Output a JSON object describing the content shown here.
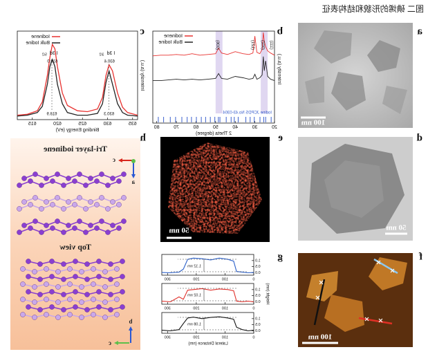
{
  "title": "图二 碘烯的形貌和结构表征",
  "panels": {
    "a": {
      "label": "a",
      "scale_bar": "100 nm"
    },
    "b": {
      "label": "b",
      "type": "line",
      "xlabel": "2 Theta (degree)",
      "ylabel": "Intensity (a.u.)",
      "xlim": [
        20,
        82
      ],
      "xticks": [
        20,
        30,
        40,
        50,
        60,
        70,
        80
      ],
      "ylim": [
        -3,
        10
      ],
      "series": [
        {
          "name": "Iodinene",
          "color": "#e8312f",
          "x": [
            20,
            22,
            23.5,
            24.5,
            25.2,
            25.7,
            26.3,
            27.5,
            29,
            30,
            31,
            33,
            36,
            40,
            44,
            47,
            48.5,
            50,
            54,
            58,
            62,
            66,
            70,
            74,
            78,
            82
          ],
          "values": [
            6.6,
            6.9,
            7.2,
            7.8,
            8.6,
            9.8,
            7.4,
            6.8,
            7.0,
            9.3,
            6.9,
            6.7,
            6.8,
            7.1,
            6.7,
            6.9,
            7.6,
            6.8,
            6.7,
            6.6,
            6.8,
            6.6,
            6.7,
            6.6,
            6.6,
            6.5
          ]
        },
        {
          "name": "Bulk Iodine",
          "color": "#222222",
          "x": [
            20,
            22,
            23.5,
            24.5,
            25.2,
            25.7,
            26.3,
            27.5,
            29,
            30,
            31,
            33,
            36,
            40,
            44,
            47,
            48.5,
            50,
            54,
            58,
            62,
            66,
            70,
            74,
            78,
            82
          ],
          "values": [
            3.0,
            3.2,
            3.6,
            5.8,
            4.4,
            6.4,
            3.8,
            3.4,
            3.2,
            3.9,
            3.3,
            3.2,
            3.4,
            3.6,
            3.2,
            3.3,
            4.0,
            3.3,
            3.2,
            3.1,
            3.2,
            3.1,
            3.2,
            3.1,
            3.0,
            3.0
          ]
        }
      ],
      "peaks": [
        {
          "label": "(111)",
          "x": 21.5
        },
        {
          "label": "(002)",
          "x": 26
        },
        {
          "label": "(121)",
          "x": 31
        },
        {
          "label": "(006)",
          "x": 49
        }
      ],
      "bands": [
        [
          23.5,
          27
        ],
        [
          46.5,
          50
        ]
      ],
      "reference": {
        "name": "Iodine JCPDS No.43-0304",
        "color": "#3a5fcd",
        "x": [
          21.7,
          24.5,
          25.5,
          27.4,
          30.3,
          32.4,
          34.6,
          38.5,
          40.5,
          42.1,
          44.6,
          47.8,
          48.6,
          50.4,
          52.7,
          55.1,
          57.3,
          59.8,
          62.3,
          64.5,
          67.2,
          70.4,
          73.1,
          76.5,
          79.2
        ]
      }
    },
    "c": {
      "label": "c",
      "type": "line",
      "xlabel": "Binding Energy (eV)",
      "ylabel": "Intensity (a.u.)",
      "xlim": [
        636,
        612
      ],
      "xticks": [
        615,
        620,
        625,
        630,
        635
      ],
      "ylim": [
        0,
        1
      ],
      "peak_labels": [
        {
          "text": "I 3d",
          "sub": "5/2",
          "x": 619.0
        },
        {
          "text": "I 3d",
          "sub": "3/2",
          "x": 630.4
        }
      ],
      "series": [
        {
          "name": "Iodinene",
          "color": "#e8312f",
          "x": [
            612,
            614,
            616,
            617,
            618,
            618.5,
            619,
            619.5,
            620,
            621,
            622,
            624,
            626,
            628,
            629,
            629.7,
            630.3,
            631,
            632,
            633,
            634,
            636
          ],
          "values": [
            0.05,
            0.06,
            0.1,
            0.2,
            0.5,
            0.7,
            0.85,
            0.8,
            0.6,
            0.3,
            0.16,
            0.1,
            0.09,
            0.12,
            0.25,
            0.5,
            0.62,
            0.55,
            0.3,
            0.14,
            0.08,
            0.05
          ],
          "peaks": [
            {
              "text": "619.0",
              "x": 619.0
            },
            {
              "text": "630.4",
              "x": 630.4
            }
          ]
        },
        {
          "name": "Bulk Iodine",
          "color": "#222222",
          "x": [
            612,
            614,
            616,
            617,
            618,
            618.5,
            619,
            619.5,
            620,
            621,
            622,
            624,
            626,
            628,
            629,
            629.7,
            630.3,
            631,
            632,
            633,
            634,
            636
          ],
          "values": [
            0.04,
            0.05,
            0.08,
            0.15,
            0.4,
            0.6,
            0.68,
            0.6,
            0.4,
            0.18,
            0.08,
            0.05,
            0.05,
            0.07,
            0.18,
            0.42,
            0.55,
            0.4,
            0.18,
            0.08,
            0.05,
            0.04
          ],
          "peaks": [
            {
              "text": "618.9",
              "x": 618.9
            },
            {
              "text": "630.3",
              "x": 630.3
            }
          ]
        }
      ]
    },
    "d": {
      "label": "d",
      "scale_bar": "50 nm"
    },
    "e": {
      "label": "e",
      "scale_bar": "50 nm"
    },
    "f": {
      "label": "f",
      "scale_bar": "100 nm"
    },
    "g": {
      "label": "g",
      "type": "line",
      "xlabel": "Lateral Distance (nm)",
      "ylabel": "Height (nm)",
      "xlim": [
        0,
        320
      ],
      "xticks": [
        0,
        100,
        200,
        300
      ],
      "ylim": [
        -0.2,
        1.5
      ],
      "yticks": [
        {
          "value": 0,
          "label": "0.0"
        },
        {
          "value": 0.5,
          "label": "0.5"
        },
        {
          "value": 1,
          "label": "1.0"
        }
      ],
      "profiles": [
        {
          "color": "#2a5fc9",
          "annotation": "1.12 nm",
          "x": [
            0,
            20,
            40,
            60,
            70,
            90,
            120,
            150,
            180,
            210,
            230,
            245,
            260,
            290,
            320
          ],
          "values": [
            0.02,
            0.0,
            0.05,
            0.1,
            0.95,
            1.1,
            1.2,
            1.05,
            1.15,
            1.2,
            1.1,
            0.3,
            0.05,
            0.0,
            0.02
          ]
        },
        {
          "color": "#e0302a",
          "annotation": "1.02 nm",
          "x": [
            0,
            20,
            40,
            60,
            70,
            90,
            120,
            150,
            180,
            210,
            230,
            245,
            260,
            290,
            320
          ],
          "values": [
            0.0,
            0.05,
            0.0,
            0.05,
            0.9,
            1.0,
            1.05,
            0.95,
            1.08,
            1.0,
            0.95,
            0.2,
            0.4,
            0.0,
            0.05
          ]
        },
        {
          "color": "#111111",
          "annotation": "1.08 nm",
          "x": [
            0,
            20,
            40,
            60,
            70,
            90,
            120,
            150,
            180,
            210,
            230,
            245,
            260,
            290,
            320
          ],
          "values": [
            0.05,
            0.0,
            0.1,
            0.3,
            0.95,
            1.05,
            1.15,
            1.1,
            1.0,
            1.12,
            1.05,
            0.6,
            0.1,
            0.0,
            0.05
          ]
        }
      ]
    },
    "h": {
      "label": "h",
      "headings": [
        "Tri-layer iodinene",
        "Top view"
      ],
      "axes_top": [
        "c",
        "a"
      ],
      "axes_bottom": [
        "b",
        "c"
      ]
    }
  }
}
